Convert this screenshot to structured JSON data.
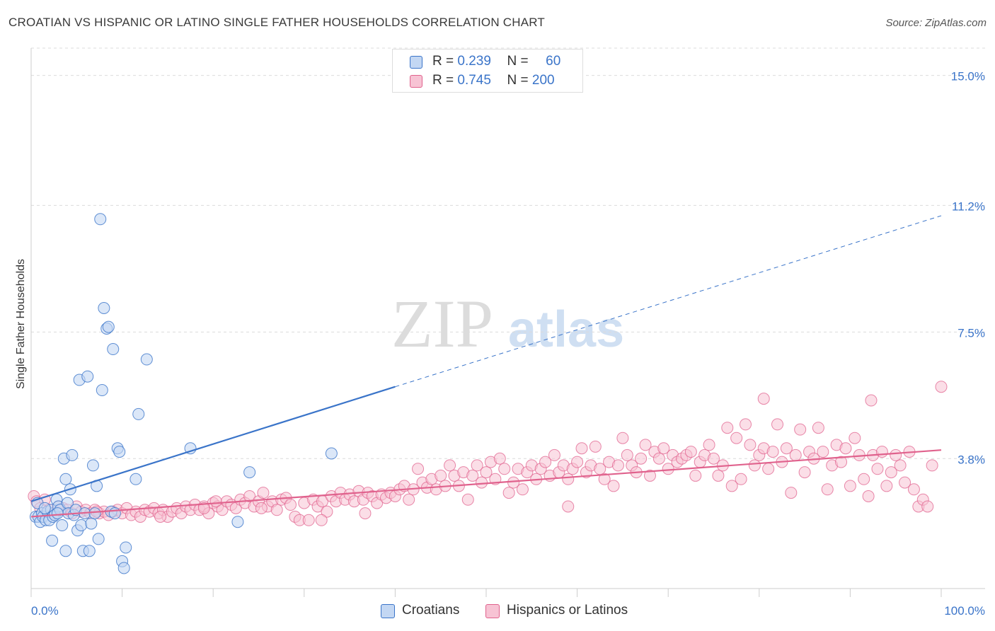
{
  "header": {
    "title": "CROATIAN VS HISPANIC OR LATINO SINGLE FATHER HOUSEHOLDS CORRELATION CHART",
    "source": "Source: ZipAtlas.com"
  },
  "watermark": {
    "zip": "ZIP",
    "atlas": "atlas"
  },
  "legend": {
    "rows": [
      {
        "r_label": "R =",
        "r_value": "0.239",
        "n_label": "N =",
        "n_value": "60"
      },
      {
        "r_label": "R =",
        "r_value": "0.745",
        "n_label": "N =",
        "n_value": "200"
      }
    ]
  },
  "colors": {
    "blue": "#3a74c9",
    "blue_fill": "#c3d7f3",
    "pink": "#e0628d",
    "pink_fill": "#f7c3d4",
    "tick_label": "#3a74c9",
    "grid": "#dcdcdc"
  },
  "chart_data": {
    "type": "scatter",
    "title": "CROATIAN VS HISPANIC OR LATINO SINGLE FATHER HOUSEHOLDS CORRELATION CHART",
    "xlabel": "",
    "ylabel": "Single Father Households",
    "xlim": [
      0,
      100
    ],
    "ylim": [
      0,
      15.8
    ],
    "x_tick_labels": [
      "0.0%",
      "100.0%"
    ],
    "y_ticks": [
      3.8,
      7.5,
      11.2,
      15.0
    ],
    "y_tick_labels": [
      "3.8%",
      "7.5%",
      "11.2%",
      "15.0%"
    ],
    "grid": "horizontal dashed",
    "legend_position": "bottom",
    "series": [
      {
        "name": "Croatians",
        "color": "#3a74c9",
        "trend": {
          "x": [
            0,
            40,
            100
          ],
          "y": [
            2.55,
            5.9,
            10.9
          ]
        },
        "points": [
          [
            0.5,
            2.1
          ],
          [
            0.7,
            2.5
          ],
          [
            0.8,
            2.1
          ],
          [
            1.0,
            1.95
          ],
          [
            1.2,
            2.2
          ],
          [
            1.3,
            2.1
          ],
          [
            1.6,
            2.0
          ],
          [
            1.8,
            2.25
          ],
          [
            2.0,
            2.0
          ],
          [
            2.2,
            2.3
          ],
          [
            2.4,
            2.1
          ],
          [
            2.6,
            2.15
          ],
          [
            2.8,
            2.6
          ],
          [
            3.0,
            2.4
          ],
          [
            3.2,
            2.3
          ],
          [
            3.4,
            1.85
          ],
          [
            3.6,
            3.8
          ],
          [
            3.8,
            3.2
          ],
          [
            4.0,
            2.5
          ],
          [
            4.1,
            2.2
          ],
          [
            4.3,
            2.9
          ],
          [
            4.5,
            3.9
          ],
          [
            4.7,
            2.15
          ],
          [
            4.9,
            2.3
          ],
          [
            5.1,
            1.7
          ],
          [
            5.3,
            6.1
          ],
          [
            5.5,
            1.85
          ],
          [
            5.7,
            1.1
          ],
          [
            5.9,
            2.2
          ],
          [
            6.2,
            6.2
          ],
          [
            6.4,
            1.1
          ],
          [
            6.6,
            1.9
          ],
          [
            6.8,
            3.6
          ],
          [
            7.0,
            2.2
          ],
          [
            7.2,
            3.0
          ],
          [
            7.4,
            1.45
          ],
          [
            7.6,
            10.8
          ],
          [
            7.8,
            5.8
          ],
          [
            8.0,
            8.2
          ],
          [
            8.3,
            7.6
          ],
          [
            8.5,
            7.65
          ],
          [
            8.8,
            2.25
          ],
          [
            9.0,
            7.0
          ],
          [
            9.2,
            2.2
          ],
          [
            9.5,
            4.1
          ],
          [
            9.7,
            4.0
          ],
          [
            10.0,
            0.8
          ],
          [
            10.2,
            0.6
          ],
          [
            10.4,
            1.2
          ],
          [
            11.5,
            3.2
          ],
          [
            11.8,
            5.1
          ],
          [
            12.7,
            6.7
          ],
          [
            2.3,
            1.4
          ],
          [
            3.8,
            1.1
          ],
          [
            1.5,
            2.35
          ],
          [
            2.9,
            2.2
          ],
          [
            17.5,
            4.1
          ],
          [
            22.7,
            1.95
          ],
          [
            24.0,
            3.4
          ],
          [
            33.0,
            3.95
          ]
        ]
      },
      {
        "name": "Hispanics or Latinos",
        "color": "#e0628d",
        "trend": {
          "x": [
            0,
            100
          ],
          "y": [
            2.1,
            4.05
          ]
        },
        "points": [
          [
            0.3,
            2.7
          ],
          [
            0.6,
            2.55
          ],
          [
            1.0,
            2.35
          ],
          [
            1.5,
            2.6
          ],
          [
            2.0,
            2.3
          ],
          [
            2.5,
            2.2
          ],
          [
            3.0,
            2.4
          ],
          [
            3.5,
            2.35
          ],
          [
            4.0,
            2.3
          ],
          [
            4.5,
            2.2
          ],
          [
            5.0,
            2.4
          ],
          [
            5.5,
            2.25
          ],
          [
            6.0,
            2.3
          ],
          [
            6.5,
            2.2
          ],
          [
            7.0,
            2.3
          ],
          [
            7.5,
            2.2
          ],
          [
            8.0,
            2.25
          ],
          [
            8.5,
            2.15
          ],
          [
            9.0,
            2.25
          ],
          [
            9.5,
            2.3
          ],
          [
            10.0,
            2.2
          ],
          [
            10.5,
            2.35
          ],
          [
            11.0,
            2.15
          ],
          [
            11.5,
            2.25
          ],
          [
            12.0,
            2.1
          ],
          [
            12.5,
            2.3
          ],
          [
            13.0,
            2.25
          ],
          [
            13.5,
            2.35
          ],
          [
            14.0,
            2.2
          ],
          [
            14.5,
            2.3
          ],
          [
            15.0,
            2.1
          ],
          [
            15.5,
            2.25
          ],
          [
            16.0,
            2.35
          ],
          [
            16.5,
            2.2
          ],
          [
            17.0,
            2.4
          ],
          [
            17.5,
            2.3
          ],
          [
            18.0,
            2.45
          ],
          [
            18.5,
            2.3
          ],
          [
            19.0,
            2.4
          ],
          [
            19.5,
            2.2
          ],
          [
            20.0,
            2.5
          ],
          [
            20.5,
            2.4
          ],
          [
            21.0,
            2.3
          ],
          [
            21.5,
            2.55
          ],
          [
            22.0,
            2.45
          ],
          [
            22.5,
            2.35
          ],
          [
            23.0,
            2.6
          ],
          [
            23.5,
            2.5
          ],
          [
            24.0,
            2.7
          ],
          [
            24.5,
            2.4
          ],
          [
            25.0,
            2.55
          ],
          [
            25.5,
            2.8
          ],
          [
            26.0,
            2.4
          ],
          [
            26.5,
            2.55
          ],
          [
            27.0,
            2.3
          ],
          [
            27.5,
            2.6
          ],
          [
            28.0,
            2.65
          ],
          [
            28.5,
            2.45
          ],
          [
            29.0,
            2.1
          ],
          [
            29.5,
            2.0
          ],
          [
            30.0,
            2.5
          ],
          [
            30.5,
            2.0
          ],
          [
            31.0,
            2.6
          ],
          [
            31.5,
            2.4
          ],
          [
            32.0,
            2.55
          ],
          [
            32.5,
            2.25
          ],
          [
            33.0,
            2.7
          ],
          [
            33.5,
            2.55
          ],
          [
            34.0,
            2.8
          ],
          [
            34.5,
            2.6
          ],
          [
            35.0,
            2.75
          ],
          [
            35.5,
            2.55
          ],
          [
            36.0,
            2.85
          ],
          [
            36.5,
            2.6
          ],
          [
            37.0,
            2.8
          ],
          [
            37.5,
            2.7
          ],
          [
            38.0,
            2.5
          ],
          [
            38.5,
            2.75
          ],
          [
            39.0,
            2.65
          ],
          [
            39.5,
            2.8
          ],
          [
            40.0,
            2.7
          ],
          [
            40.5,
            2.9
          ],
          [
            41.0,
            3.0
          ],
          [
            41.5,
            2.6
          ],
          [
            42.0,
            2.9
          ],
          [
            42.5,
            3.5
          ],
          [
            43.0,
            3.1
          ],
          [
            43.5,
            2.95
          ],
          [
            44.0,
            3.2
          ],
          [
            44.5,
            2.9
          ],
          [
            45.0,
            3.3
          ],
          [
            45.5,
            3.0
          ],
          [
            46.0,
            3.6
          ],
          [
            46.5,
            3.3
          ],
          [
            47.0,
            3.0
          ],
          [
            47.5,
            3.4
          ],
          [
            48.0,
            2.6
          ],
          [
            48.5,
            3.3
          ],
          [
            49.0,
            3.6
          ],
          [
            49.5,
            3.1
          ],
          [
            50.0,
            3.4
          ],
          [
            50.5,
            3.7
          ],
          [
            51.0,
            3.2
          ],
          [
            51.5,
            3.8
          ],
          [
            52.0,
            3.5
          ],
          [
            52.5,
            2.8
          ],
          [
            53.0,
            3.1
          ],
          [
            53.5,
            3.5
          ],
          [
            54.0,
            2.9
          ],
          [
            54.5,
            3.4
          ],
          [
            55.0,
            3.6
          ],
          [
            55.5,
            3.2
          ],
          [
            56.0,
            3.5
          ],
          [
            56.5,
            3.7
          ],
          [
            57.0,
            3.3
          ],
          [
            57.5,
            3.9
          ],
          [
            58.0,
            3.4
          ],
          [
            58.5,
            3.6
          ],
          [
            59.0,
            3.2
          ],
          [
            59.5,
            3.5
          ],
          [
            60.0,
            3.7
          ],
          [
            60.5,
            4.1
          ],
          [
            61.0,
            3.4
          ],
          [
            61.5,
            3.6
          ],
          [
            62.0,
            4.15
          ],
          [
            62.5,
            3.5
          ],
          [
            63.0,
            3.2
          ],
          [
            63.5,
            3.7
          ],
          [
            64.0,
            3.0
          ],
          [
            64.5,
            3.6
          ],
          [
            65.0,
            4.4
          ],
          [
            65.5,
            3.9
          ],
          [
            66.0,
            3.6
          ],
          [
            66.5,
            3.4
          ],
          [
            67.0,
            3.8
          ],
          [
            67.5,
            4.2
          ],
          [
            68.0,
            3.3
          ],
          [
            68.5,
            4.0
          ],
          [
            69.0,
            3.8
          ],
          [
            69.5,
            4.1
          ],
          [
            70.0,
            3.5
          ],
          [
            70.5,
            3.9
          ],
          [
            71.0,
            3.7
          ],
          [
            71.5,
            3.8
          ],
          [
            72.0,
            3.9
          ],
          [
            72.5,
            4.0
          ],
          [
            73.0,
            3.3
          ],
          [
            73.5,
            3.7
          ],
          [
            74.0,
            3.9
          ],
          [
            74.5,
            4.2
          ],
          [
            75.0,
            3.8
          ],
          [
            75.5,
            3.3
          ],
          [
            76.0,
            3.6
          ],
          [
            76.5,
            4.7
          ],
          [
            77.0,
            3.0
          ],
          [
            77.5,
            4.4
          ],
          [
            78.0,
            3.2
          ],
          [
            78.5,
            4.8
          ],
          [
            79.0,
            4.2
          ],
          [
            79.5,
            3.6
          ],
          [
            80.0,
            3.9
          ],
          [
            80.5,
            4.1
          ],
          [
            81.0,
            3.5
          ],
          [
            81.5,
            4.0
          ],
          [
            82.0,
            4.8
          ],
          [
            82.5,
            3.7
          ],
          [
            83.0,
            4.1
          ],
          [
            83.5,
            2.8
          ],
          [
            84.0,
            3.9
          ],
          [
            84.5,
            4.65
          ],
          [
            85.0,
            3.4
          ],
          [
            85.5,
            4.0
          ],
          [
            86.0,
            3.8
          ],
          [
            86.5,
            4.7
          ],
          [
            87.0,
            4.0
          ],
          [
            87.5,
            2.9
          ],
          [
            88.0,
            3.6
          ],
          [
            88.5,
            4.2
          ],
          [
            89.0,
            3.7
          ],
          [
            89.5,
            4.1
          ],
          [
            90.0,
            3.0
          ],
          [
            90.5,
            4.4
          ],
          [
            91.0,
            3.9
          ],
          [
            91.5,
            3.2
          ],
          [
            92.0,
            2.7
          ],
          [
            92.5,
            3.9
          ],
          [
            93.0,
            3.5
          ],
          [
            93.5,
            4.0
          ],
          [
            94.0,
            3.0
          ],
          [
            94.5,
            3.4
          ],
          [
            95.0,
            3.9
          ],
          [
            95.5,
            3.6
          ],
          [
            96.0,
            3.1
          ],
          [
            96.5,
            4.0
          ],
          [
            97.0,
            2.9
          ],
          [
            97.5,
            2.4
          ],
          [
            98.0,
            2.6
          ],
          [
            98.5,
            2.4
          ],
          [
            99.0,
            3.6
          ],
          [
            100.0,
            5.9
          ],
          [
            92.3,
            5.5
          ],
          [
            80.5,
            5.55
          ],
          [
            59.0,
            2.4
          ],
          [
            20.3,
            2.55
          ],
          [
            14.2,
            2.1
          ],
          [
            7.2,
            2.25
          ],
          [
            19.0,
            2.35
          ],
          [
            25.3,
            2.35
          ],
          [
            31.9,
            2.0
          ],
          [
            36.7,
            2.2
          ]
        ]
      }
    ]
  },
  "bottom_legend": {
    "items": [
      {
        "label": "Croatians"
      },
      {
        "label": "Hispanics or Latinos"
      }
    ]
  }
}
